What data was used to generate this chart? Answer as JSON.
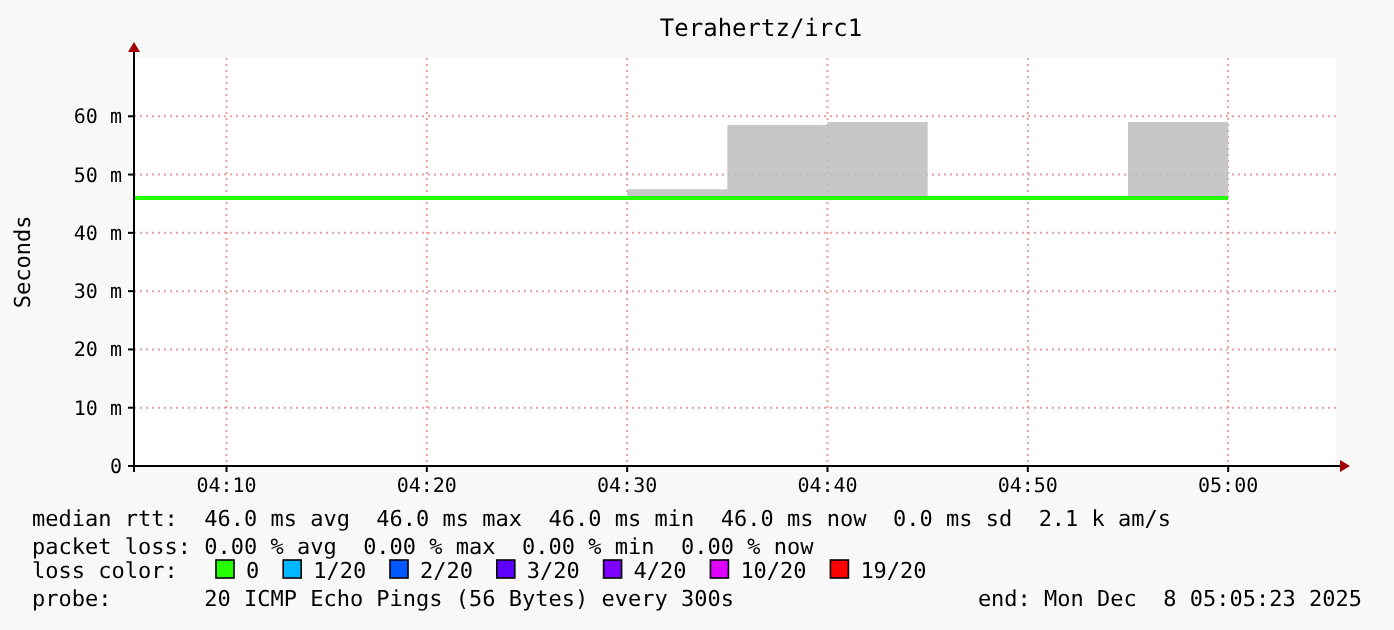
{
  "chart_data": {
    "type": "step",
    "title": "Terahertz/irc1",
    "ylabel": "Seconds",
    "legend_title": "loss color:",
    "legend": "bottom",
    "grid": true,
    "x": [
      4.08972,
      4.16667,
      4.25,
      4.33333,
      4.41667,
      4.5,
      4.58333,
      4.66667,
      4.75,
      4.83333,
      4.91667,
      5.0
    ],
    "xlim": [
      4.08972,
      5.08972
    ],
    "xticks": [
      {
        "value": 4.16667,
        "label": "04:10"
      },
      {
        "value": 4.33333,
        "label": "04:20"
      },
      {
        "value": 4.5,
        "label": "04:30"
      },
      {
        "value": 4.66667,
        "label": "04:40"
      },
      {
        "value": 4.83333,
        "label": "04:50"
      },
      {
        "value": 5.0,
        "label": "05:00"
      }
    ],
    "ylim": [
      0,
      70
    ],
    "yticks": [
      0,
      {
        "value": 10,
        "label": "10 m"
      },
      {
        "value": 20,
        "label": "20 m"
      },
      {
        "value": 30,
        "label": "30 m"
      },
      {
        "value": 40,
        "label": "40 m"
      },
      {
        "value": 50,
        "label": "50 m"
      },
      {
        "value": 60,
        "label": "60 m"
      }
    ],
    "series": [
      {
        "name": "0",
        "color": "#26ff00",
        "values": [
          46,
          46,
          46,
          46,
          46,
          46,
          46,
          46,
          46,
          46,
          46,
          46
        ],
        "lower": [
          null,
          null,
          null,
          null,
          null,
          46,
          46,
          46,
          46,
          null,
          46,
          46
        ],
        "upper": [
          null,
          null,
          null,
          null,
          null,
          47.5,
          58.5,
          59,
          59,
          null,
          59,
          59
        ]
      },
      {
        "name": "1/20",
        "color": "#00b8ff",
        "values": [
          null,
          null,
          null,
          null,
          null,
          null,
          null,
          null,
          null,
          null,
          null,
          null
        ]
      },
      {
        "name": "2/20",
        "color": "#0059ff",
        "values": [
          null,
          null,
          null,
          null,
          null,
          null,
          null,
          null,
          null,
          null,
          null,
          null
        ]
      },
      {
        "name": "3/20",
        "color": "#5e00ff",
        "values": [
          null,
          null,
          null,
          null,
          null,
          null,
          null,
          null,
          null,
          null,
          null,
          null
        ]
      },
      {
        "name": "4/20",
        "color": "#7e00ff",
        "values": [
          null,
          null,
          null,
          null,
          null,
          null,
          null,
          null,
          null,
          null,
          null,
          null
        ]
      },
      {
        "name": "10/20",
        "color": "#dd00ff",
        "values": [
          null,
          null,
          null,
          null,
          null,
          null,
          null,
          null,
          null,
          null,
          null,
          null
        ]
      },
      {
        "name": "19/20",
        "color": "#ff0000",
        "values": [
          null,
          null,
          null,
          null,
          null,
          null,
          null,
          null,
          null,
          null,
          null,
          null
        ]
      }
    ],
    "annotations": [
      "median rtt:  46.0 ms avg  46.0 ms max  46.0 ms min  46.0 ms now  0.0 ms sd  2.1 k am/s",
      "packet loss: 0.00 % avg  0.00 % max  0.00 % min  0.00 % now",
      "probe:       20 ICMP Echo Pings (56 Bytes) every 300s",
      "end: Mon Dec  8 05:05:23 2025"
    ]
  }
}
